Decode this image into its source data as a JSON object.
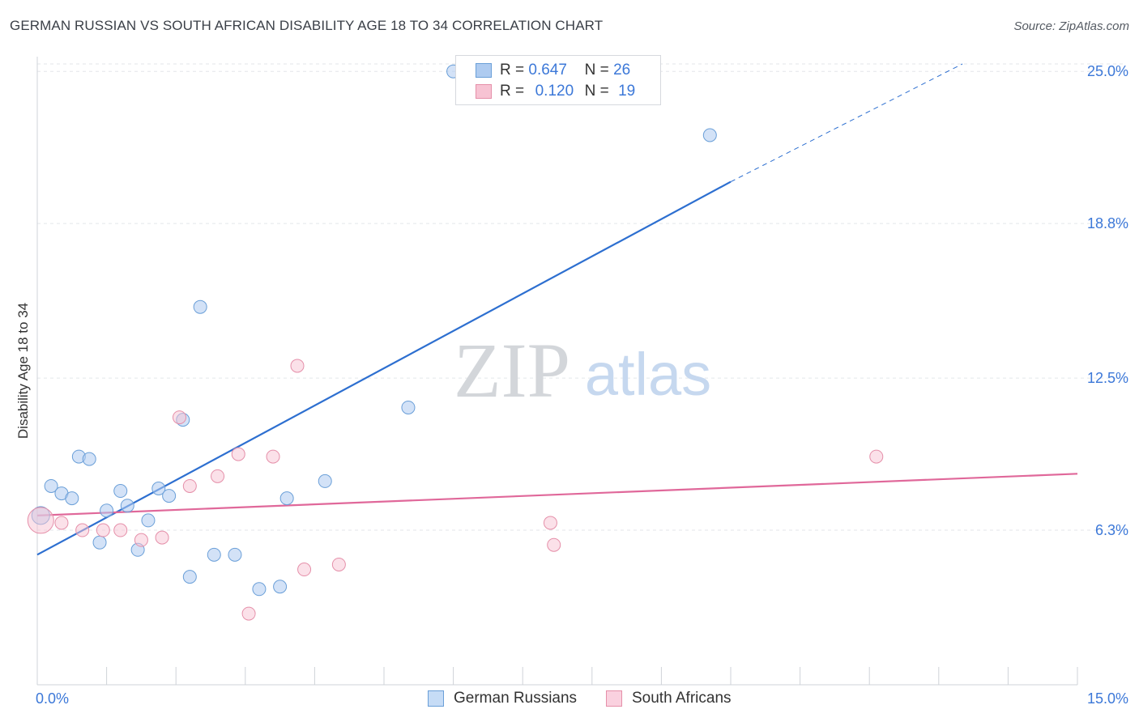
{
  "header": {
    "title": "GERMAN RUSSIAN VS SOUTH AFRICAN DISABILITY AGE 18 TO 34 CORRELATION CHART",
    "source": "Source: ZipAtlas.com"
  },
  "watermark": {
    "zip": "ZIP",
    "atlas": "atlas"
  },
  "legend": {
    "rows": [
      {
        "r_label": "R =",
        "r_value": "0.647",
        "n_label": "N =",
        "n_value": "26",
        "color": "#aecbf0",
        "border": "#6a9fd8"
      },
      {
        "r_label": "R =",
        "r_value": "0.120",
        "n_label": "N =",
        "n_value": "19",
        "color": "#f7c3d3",
        "border": "#e58fa9"
      }
    ]
  },
  "bottom_legend": [
    {
      "label": "German Russians",
      "color": "#c6dcf6",
      "border": "#6a9fd8"
    },
    {
      "label": "South Africans",
      "color": "#fad1df",
      "border": "#e58fa9"
    }
  ],
  "colors": {
    "blue_line": "#2d6fd0",
    "pink_line": "#e0689a",
    "tick_label": "#3c78d8",
    "grid": "#e3e6ea"
  },
  "chart_data": {
    "type": "scatter",
    "ylabel": "Disability Age 18 to 34",
    "xlim": [
      0,
      15
    ],
    "ylim": [
      0,
      25.6
    ],
    "x_tick_labels": [
      {
        "value": 0,
        "label": "0.0%"
      },
      {
        "value": 15,
        "label": "15.0%"
      }
    ],
    "y_tick_labels": [
      {
        "value": 6.3,
        "label": "6.3%"
      },
      {
        "value": 12.5,
        "label": "12.5%"
      },
      {
        "value": 18.8,
        "label": "18.8%"
      },
      {
        "value": 25.0,
        "label": "25.0%"
      }
    ],
    "grid": true,
    "legend_position": "top-center",
    "series": [
      {
        "name": "German Russians",
        "color": "#aecbf0",
        "points": [
          [
            0.05,
            6.9
          ],
          [
            0.2,
            8.1
          ],
          [
            0.35,
            7.8
          ],
          [
            0.5,
            7.6
          ],
          [
            0.6,
            9.3
          ],
          [
            0.75,
            9.2
          ],
          [
            0.9,
            5.8
          ],
          [
            1.0,
            7.1
          ],
          [
            1.2,
            7.9
          ],
          [
            1.3,
            7.3
          ],
          [
            1.45,
            5.5
          ],
          [
            1.6,
            6.7
          ],
          [
            1.75,
            8.0
          ],
          [
            1.9,
            7.7
          ],
          [
            2.1,
            10.8
          ],
          [
            2.2,
            4.4
          ],
          [
            2.35,
            15.4
          ],
          [
            2.55,
            5.3
          ],
          [
            2.85,
            5.3
          ],
          [
            3.2,
            3.9
          ],
          [
            3.5,
            4.0
          ],
          [
            3.6,
            7.6
          ],
          [
            4.15,
            8.3
          ],
          [
            5.35,
            11.3
          ],
          [
            6.0,
            25.0
          ],
          [
            9.7,
            22.4
          ]
        ]
      },
      {
        "name": "South Africans",
        "color": "#f7c3d3",
        "points": [
          [
            0.05,
            6.7
          ],
          [
            0.35,
            6.6
          ],
          [
            0.65,
            6.3
          ],
          [
            0.95,
            6.3
          ],
          [
            1.2,
            6.3
          ],
          [
            1.5,
            5.9
          ],
          [
            1.8,
            6.0
          ],
          [
            2.05,
            10.9
          ],
          [
            2.2,
            8.1
          ],
          [
            2.6,
            8.5
          ],
          [
            2.9,
            9.4
          ],
          [
            3.05,
            2.9
          ],
          [
            3.4,
            9.3
          ],
          [
            3.75,
            13.0
          ],
          [
            3.85,
            4.7
          ],
          [
            4.35,
            4.9
          ],
          [
            7.4,
            6.6
          ],
          [
            7.45,
            5.7
          ],
          [
            12.1,
            9.3
          ]
        ]
      }
    ],
    "trendlines": [
      {
        "series": "German Russians",
        "x": [
          0,
          10.0
        ],
        "y": [
          5.3,
          20.5
        ],
        "dashed_extension": {
          "x": [
            10.0,
            15.3
          ],
          "y": [
            20.5,
            28.6
          ]
        }
      },
      {
        "series": "South Africans",
        "x": [
          0,
          15.0
        ],
        "y": [
          6.9,
          8.6
        ]
      }
    ]
  }
}
